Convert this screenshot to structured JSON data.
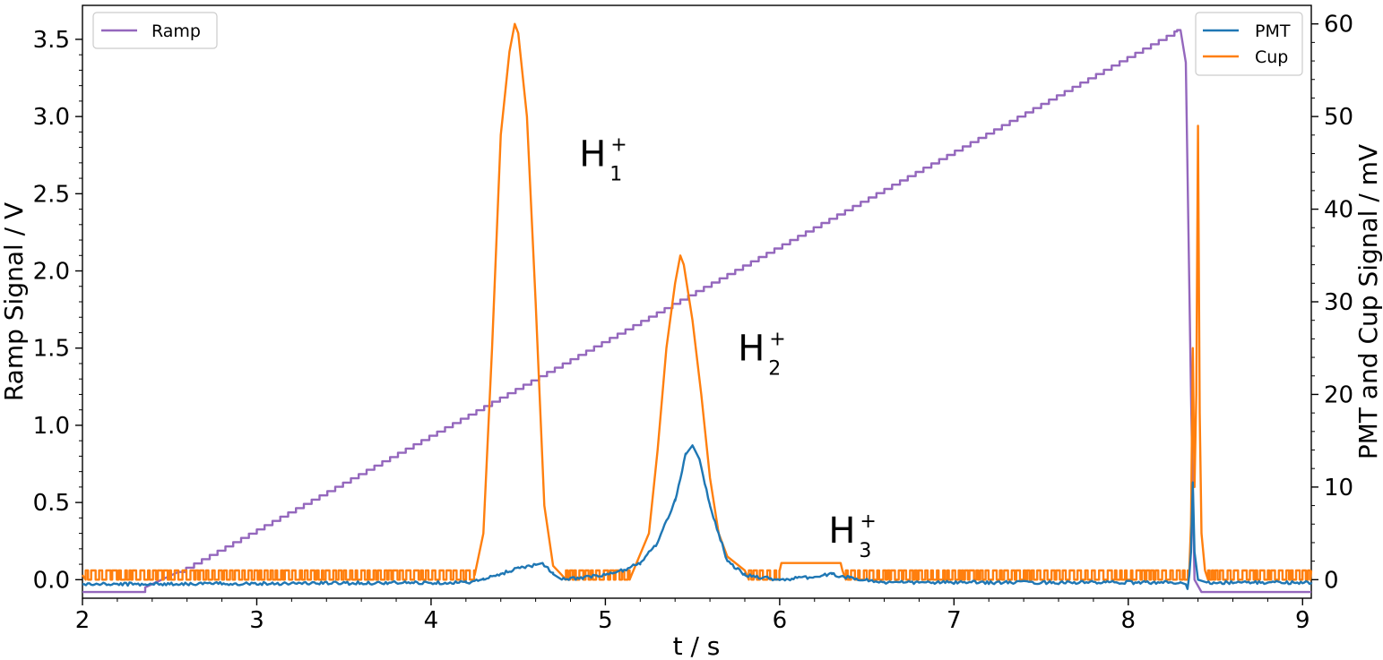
{
  "chart_data": {
    "type": "line",
    "xlabel": "t / s",
    "ylabel": "Ramp Signal / V",
    "y2label": "PMT and Cup Signal / mV",
    "xlim": [
      2.0,
      9.05
    ],
    "ylim": [
      -0.12,
      3.72
    ],
    "y2lim": [
      -2.0,
      62.0
    ],
    "xticks": [
      2,
      3,
      4,
      5,
      6,
      7,
      8,
      9
    ],
    "yticks": [
      0.0,
      0.5,
      1.0,
      1.5,
      2.0,
      2.5,
      3.0,
      3.5
    ],
    "y2ticks": [
      0,
      10,
      20,
      30,
      40,
      50,
      60
    ],
    "grid": false,
    "legends": [
      {
        "placement": "top-left",
        "entries": [
          "Ramp"
        ]
      },
      {
        "placement": "top-right",
        "entries": [
          "PMT",
          "Cup"
        ]
      }
    ],
    "annotations": [
      {
        "label": "H",
        "charge": "+",
        "index": "1",
        "x": 4.85,
        "y": 2.68
      },
      {
        "label": "H",
        "charge": "+",
        "index": "2",
        "x": 5.76,
        "y": 1.42
      },
      {
        "label": "H",
        "charge": "+",
        "index": "3",
        "x": 6.28,
        "y": 0.24
      }
    ],
    "series": [
      {
        "name": "Ramp",
        "axis": "left",
        "color": "#9467bd",
        "shape": "staircase",
        "x": [
          2.0,
          2.36,
          2.36,
          2.55,
          8.28,
          8.3,
          8.33,
          8.36,
          8.38,
          8.42,
          8.44,
          9.05
        ],
        "y": [
          -0.08,
          -0.08,
          -0.05,
          0.05,
          3.56,
          3.56,
          3.35,
          1.2,
          0.0,
          -0.08,
          -0.08,
          -0.08
        ]
      },
      {
        "name": "PMT",
        "axis": "right",
        "color": "#1f77b4",
        "x": [
          2.0,
          4.2,
          4.3,
          4.4,
          4.5,
          4.6,
          4.64,
          4.7,
          4.75,
          5.0,
          5.1,
          5.2,
          5.3,
          5.4,
          5.46,
          5.5,
          5.54,
          5.6,
          5.7,
          5.8,
          6.0,
          6.2,
          6.3,
          6.4,
          6.6,
          8.3,
          8.33,
          8.34,
          8.35,
          8.36,
          8.37,
          8.38,
          8.4,
          8.45,
          9.05
        ],
        "y": [
          -0.5,
          -0.3,
          0.0,
          0.6,
          1.3,
          1.6,
          1.8,
          0.6,
          0.0,
          0.5,
          1.0,
          1.8,
          4.0,
          8.5,
          13.5,
          14.5,
          13.0,
          8.0,
          2.0,
          0.5,
          0.0,
          0.3,
          0.6,
          0.2,
          -0.3,
          -0.3,
          -0.5,
          -1.0,
          0.5,
          3.0,
          10.5,
          3.0,
          0.0,
          -0.3,
          -0.3
        ]
      },
      {
        "name": "Cup",
        "axis": "right",
        "color": "#ff7f0e",
        "noise": true,
        "x": [
          2.0,
          4.25,
          4.3,
          4.35,
          4.4,
          4.45,
          4.48,
          4.5,
          4.55,
          4.6,
          4.65,
          4.7,
          4.75,
          5.15,
          5.25,
          5.3,
          5.35,
          5.4,
          5.43,
          5.45,
          5.5,
          5.55,
          5.6,
          5.65,
          5.7,
          5.8,
          6.0,
          6.01,
          6.35,
          6.36,
          8.35,
          8.36,
          8.37,
          8.38,
          8.39,
          8.4,
          8.41,
          8.42,
          8.44,
          9.05
        ],
        "y": [
          0.5,
          0.5,
          5.0,
          25.0,
          48.0,
          57.0,
          60.0,
          59.0,
          50.0,
          30.0,
          8.0,
          1.5,
          0.5,
          0.5,
          5.0,
          14.0,
          25.0,
          32.0,
          35.0,
          34.0,
          28.0,
          20.0,
          11.0,
          5.0,
          2.5,
          1.0,
          1.0,
          1.8,
          1.8,
          1.0,
          1.0,
          6.0,
          25.0,
          10.0,
          20.0,
          49.0,
          18.0,
          5.0,
          1.0,
          1.0
        ]
      }
    ]
  }
}
